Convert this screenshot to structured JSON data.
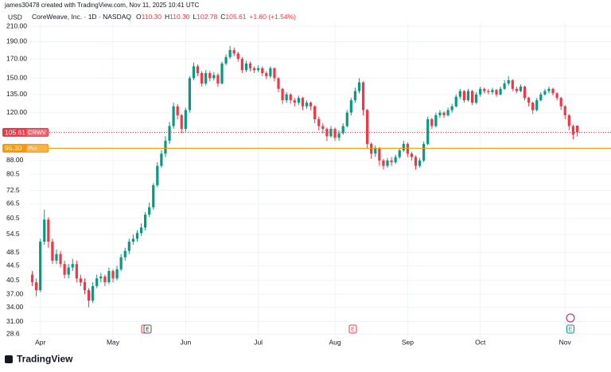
{
  "header": {
    "watermark": "james30478 created with TradingView.com, Nov 11, 2025 10:41 UTC",
    "symbol": "CoreWeave, Inc. · 1D · NASDAQ",
    "ohlc": [
      {
        "key": "O",
        "value": "110.30"
      },
      {
        "key": "H",
        "value": "110.30"
      },
      {
        "key": "L",
        "value": "102.78"
      },
      {
        "key": "C",
        "value": "105.61"
      }
    ],
    "change": "+1.60 (+1.54%)",
    "currency": "USD"
  },
  "chart_data": {
    "type": "candlestick",
    "log_scale": true,
    "grid": true,
    "up_color": "#089981",
    "down_color": "#f23645",
    "categories": [
      null,
      null,
      "Apr",
      null,
      null,
      null,
      null,
      null,
      null,
      null,
      null,
      null,
      null,
      null,
      null,
      null,
      null,
      null,
      null,
      null,
      "May",
      null,
      null,
      null,
      null,
      null,
      null,
      null,
      null,
      null,
      null,
      null,
      null,
      null,
      null,
      null,
      null,
      null,
      "Jun",
      null,
      null,
      null,
      null,
      null,
      null,
      null,
      null,
      null,
      null,
      null,
      null,
      null,
      null,
      null,
      null,
      null,
      "Jul",
      null,
      null,
      null,
      null,
      null,
      null,
      null,
      null,
      null,
      null,
      null,
      null,
      null,
      null,
      null,
      null,
      null,
      null,
      "Aug",
      null,
      null,
      null,
      null,
      null,
      null,
      null,
      null,
      null,
      null,
      null,
      null,
      null,
      null,
      null,
      null,
      null,
      "Sep",
      null,
      null,
      null,
      null,
      null,
      null,
      null,
      null,
      null,
      null,
      null,
      null,
      null,
      null,
      null,
      null,
      null,
      "Oct",
      null,
      null,
      null,
      null,
      null,
      null,
      null,
      null,
      null,
      null,
      null,
      null,
      null,
      null,
      null,
      null,
      null,
      null,
      null,
      null,
      "Nov",
      null,
      null,
      null
    ],
    "open": [
      42,
      40,
      38,
      52,
      60,
      52,
      46,
      48,
      45,
      42,
      44,
      45,
      41,
      40,
      38,
      35.5,
      39,
      41,
      41.5,
      40,
      43,
      41,
      43.5,
      47,
      49,
      52,
      53,
      55,
      57,
      62,
      65,
      75,
      85,
      92,
      100,
      110,
      125,
      118,
      108,
      122,
      150,
      162,
      155,
      145,
      155,
      150,
      153,
      145,
      165,
      172,
      180,
      176,
      170,
      158,
      165,
      160,
      158,
      160,
      155,
      152,
      160,
      150,
      140,
      130,
      135,
      130,
      128,
      132,
      125,
      128,
      125,
      115,
      110,
      108,
      103,
      108,
      102,
      105,
      110,
      120,
      130,
      138,
      146,
      122,
      98,
      92,
      95,
      88,
      85,
      88,
      87,
      90,
      94,
      98,
      92,
      90,
      85,
      88,
      98,
      115,
      110,
      118,
      120,
      118,
      122,
      125,
      133,
      138,
      130,
      138,
      128,
      135,
      140,
      138,
      137,
      139,
      135,
      140,
      145,
      148,
      140,
      138,
      142,
      132,
      128,
      122,
      130,
      135,
      138,
      140,
      136,
      132,
      125,
      118,
      110,
      110.3
    ],
    "high": [
      43,
      41,
      53,
      64,
      61,
      53,
      49.5,
      49,
      46,
      45,
      46.5,
      46,
      42,
      41,
      38.5,
      40,
      42,
      42.5,
      42,
      44,
      43.5,
      44.5,
      48,
      50,
      53,
      54.5,
      56,
      58.5,
      63,
      67,
      76,
      87,
      94,
      103,
      113,
      128,
      127,
      119,
      124,
      152,
      166,
      164,
      157,
      158,
      157,
      156,
      155,
      167,
      175,
      185,
      183,
      178,
      172,
      168,
      167,
      162,
      163,
      162,
      157,
      162,
      161,
      151,
      141,
      137,
      136,
      132,
      134,
      133,
      130,
      129,
      126,
      117,
      112,
      109,
      110,
      109,
      107,
      112,
      122,
      132,
      141,
      150,
      147,
      123,
      99,
      97,
      96,
      89,
      89.5,
      90,
      91.5,
      95.5,
      100,
      99,
      93,
      91,
      89.5,
      99.5,
      117,
      116,
      120,
      122,
      121,
      124,
      127,
      135,
      140,
      139,
      140,
      139,
      137,
      142,
      141,
      140,
      141,
      140,
      142,
      148,
      152,
      149,
      142,
      144,
      143,
      133,
      129,
      132,
      137,
      140,
      142,
      141,
      137,
      133,
      126,
      119,
      111,
      110.3
    ],
    "low": [
      39,
      36.5,
      37.5,
      51,
      50,
      45,
      45,
      44,
      41,
      41,
      43,
      40,
      39,
      37,
      34,
      35,
      38.5,
      40,
      39,
      39.5,
      40,
      40.5,
      43,
      46,
      48,
      51,
      52,
      54,
      56,
      61,
      64,
      74,
      84,
      90,
      98,
      108,
      115,
      105,
      106,
      120,
      148,
      152,
      142,
      143,
      147,
      148,
      142,
      144,
      163,
      170,
      173,
      167,
      155,
      156,
      157,
      155,
      156,
      152,
      149,
      150,
      147,
      137,
      127,
      128,
      127,
      125,
      126,
      122,
      123,
      122,
      112,
      107,
      105,
      100,
      102,
      100,
      100,
      104,
      109,
      118,
      128,
      136,
      118,
      95,
      89,
      90,
      85,
      83,
      84,
      85,
      86,
      89,
      93,
      90,
      88,
      83,
      84,
      87,
      97,
      108,
      109,
      116,
      116,
      117,
      120,
      124,
      131,
      128,
      129,
      126,
      127,
      133,
      136,
      135,
      135,
      133,
      134,
      139,
      143,
      138,
      136,
      137,
      130,
      125,
      119,
      121,
      129,
      134,
      136,
      134,
      130,
      122,
      115,
      107,
      101,
      102.78
    ],
    "close": [
      40,
      38,
      52,
      60,
      52,
      46,
      48,
      45,
      42,
      44,
      45,
      41,
      40,
      38,
      35.5,
      39,
      41,
      41.5,
      40,
      43,
      41,
      43.5,
      47,
      49,
      52,
      53,
      55,
      57,
      62,
      65,
      75,
      85,
      92,
      100,
      110,
      125,
      118,
      108,
      122,
      150,
      162,
      155,
      145,
      155,
      150,
      153,
      145,
      165,
      172,
      180,
      176,
      170,
      158,
      165,
      160,
      158,
      160,
      155,
      152,
      160,
      150,
      140,
      130,
      135,
      130,
      128,
      132,
      125,
      128,
      125,
      115,
      110,
      108,
      103,
      108,
      102,
      105,
      110,
      120,
      130,
      138,
      146,
      122,
      98,
      92,
      95,
      88,
      85,
      88,
      87,
      90,
      94,
      98,
      92,
      90,
      85,
      88,
      98,
      115,
      110,
      118,
      120,
      118,
      122,
      125,
      133,
      138,
      130,
      138,
      128,
      135,
      140,
      138,
      137,
      139,
      135,
      140,
      145,
      148,
      140,
      138,
      142,
      132,
      128,
      122,
      130,
      135,
      138,
      140,
      136,
      132,
      125,
      118,
      110,
      104.01,
      105.61
    ],
    "ylim": [
      27.9,
      215.5
    ],
    "yticks": [
      {
        "value": 210,
        "label": "210.00"
      },
      {
        "value": 190,
        "label": "190.00"
      },
      {
        "value": 170,
        "label": "170.00"
      },
      {
        "value": 150,
        "label": "150.00"
      },
      {
        "value": 135,
        "label": "135.00"
      },
      {
        "value": 120,
        "label": "120.00"
      },
      {
        "value": 88,
        "label": "88.00"
      },
      80.5,
      72.5,
      66.5,
      60.5,
      54.5,
      48.5,
      44.5,
      40.5,
      {
        "value": 37,
        "label": "37.00"
      },
      {
        "value": 34,
        "label": "34.00"
      },
      {
        "value": 31,
        "label": "31.00"
      },
      28.6
    ],
    "last_price": {
      "value": 105.61,
      "label": "105.61",
      "tag": "CRWV",
      "color": "#f23645"
    },
    "premarket": {
      "value": 95.3,
      "label": "95.30",
      "tag": "Pre",
      "color": "#ff9800"
    }
  },
  "events": [
    "E",
    "E",
    "E"
  ],
  "footer": {
    "logo": "TradingView"
  }
}
